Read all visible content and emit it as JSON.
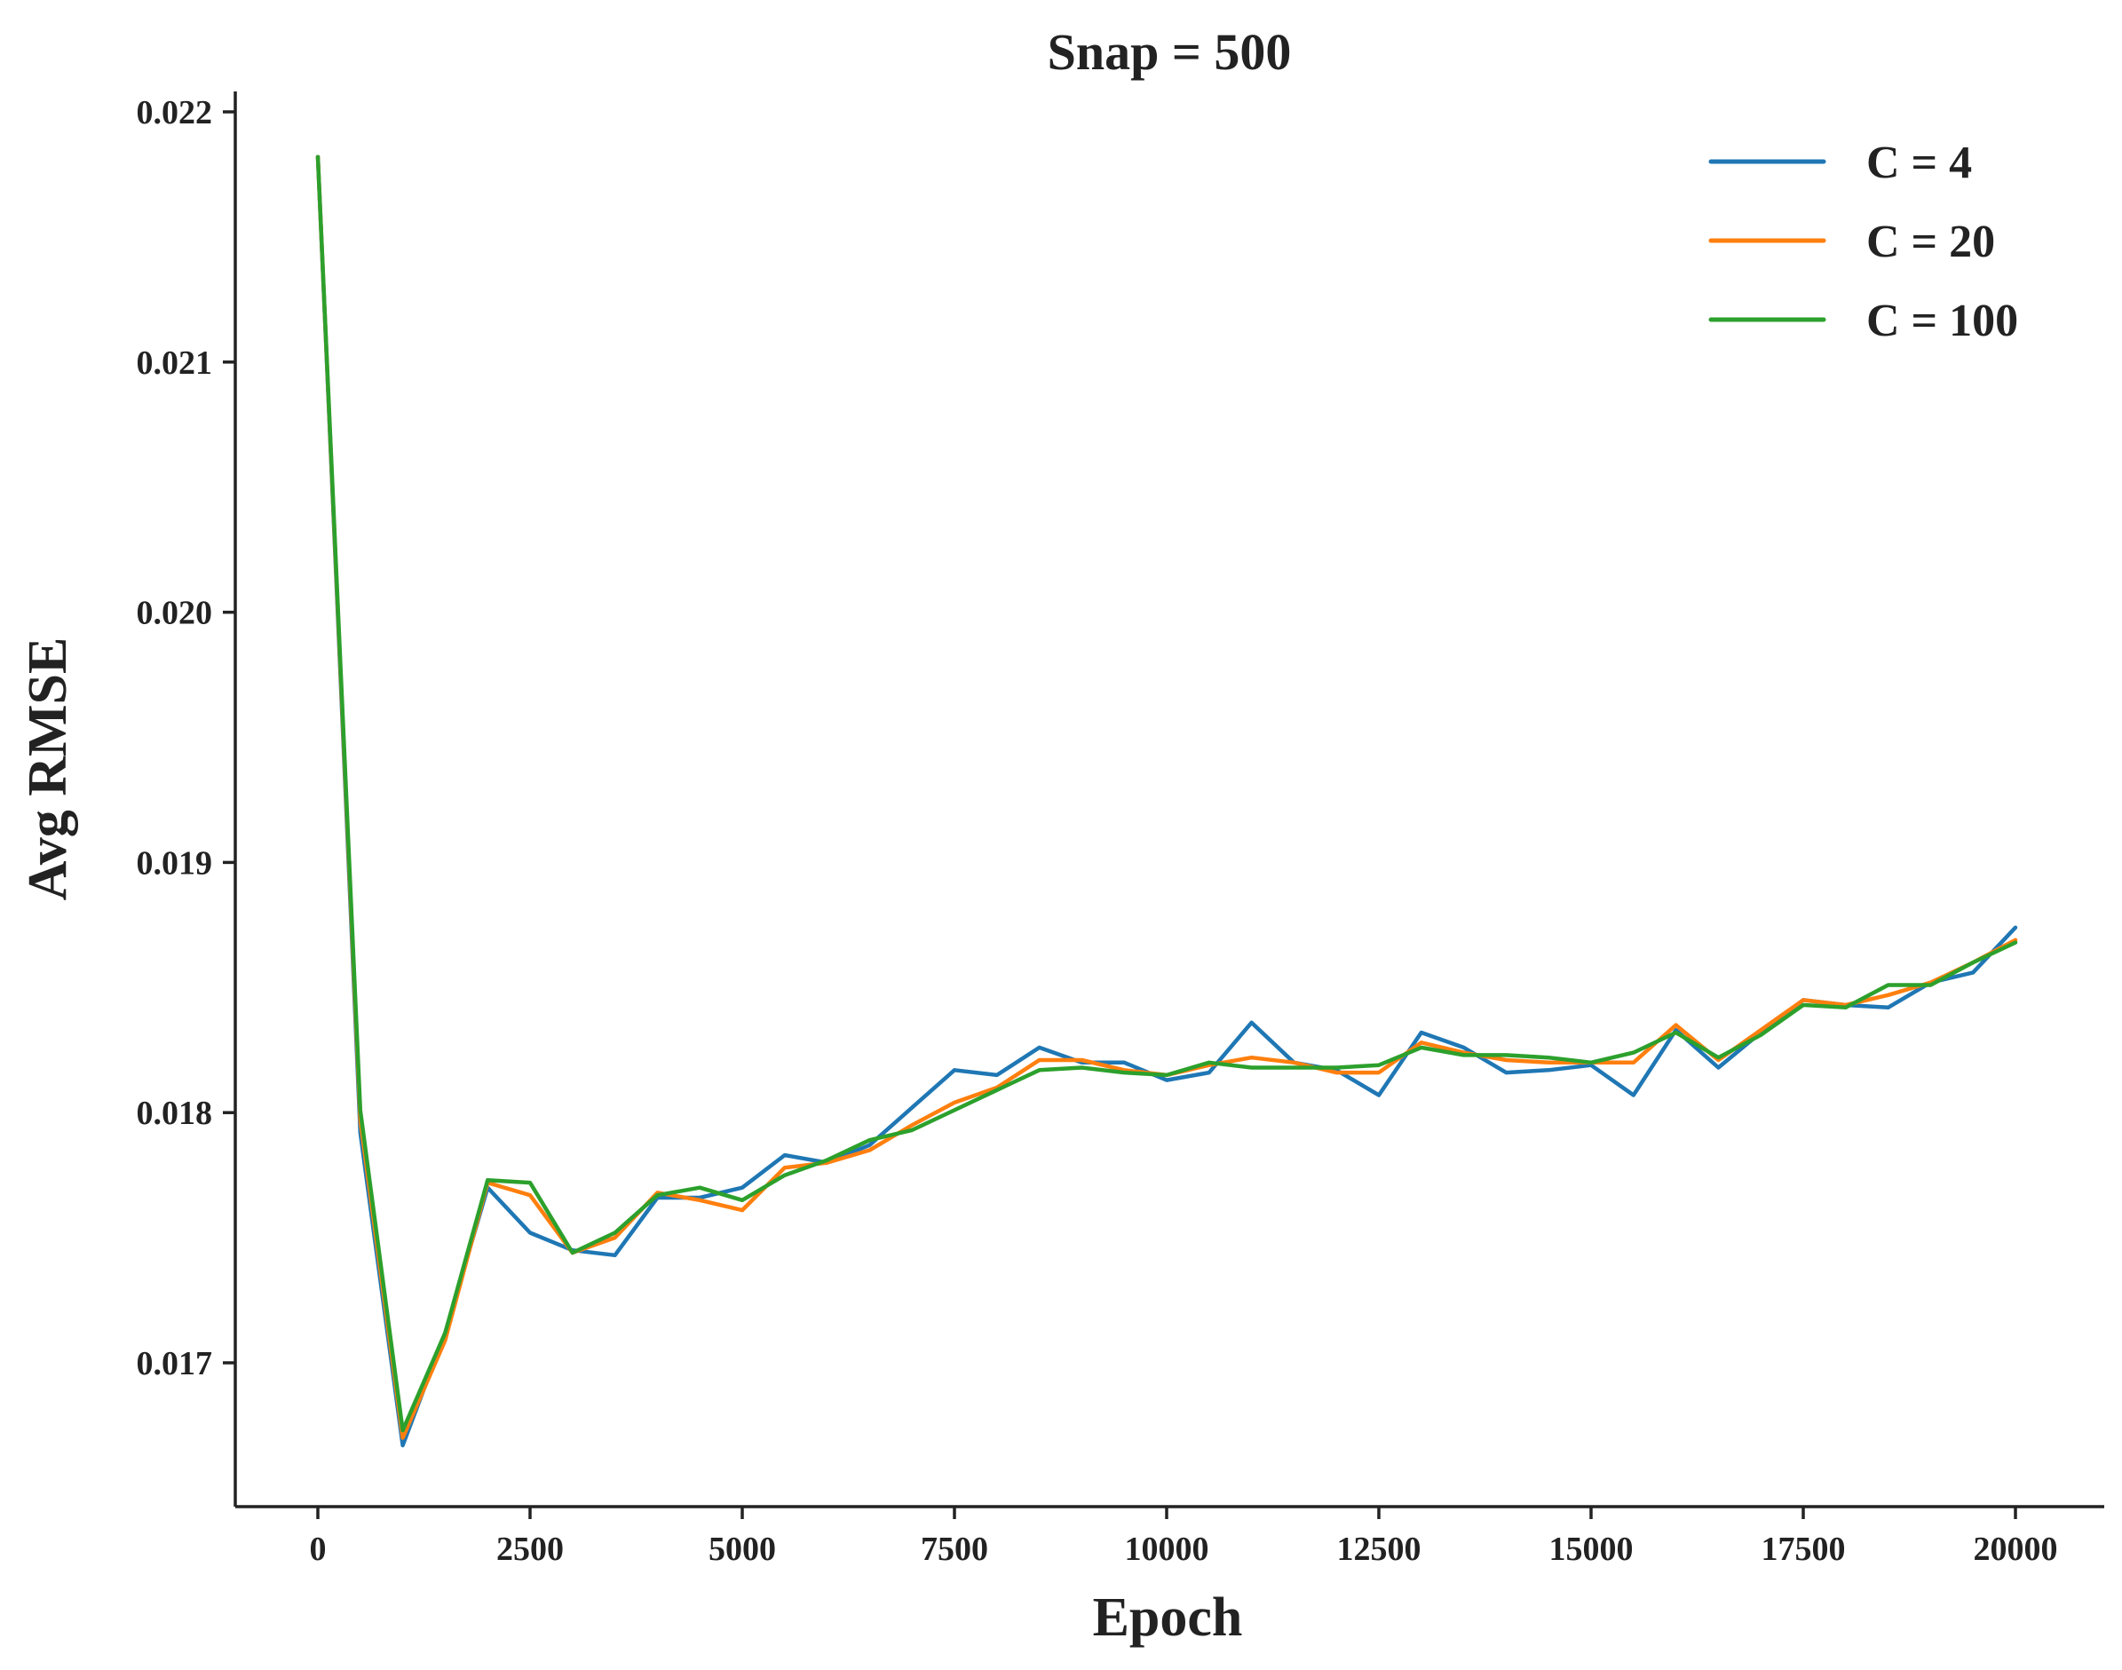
{
  "chart_data": {
    "type": "line",
    "title": "Snap = 500",
    "xlabel": "Epoch",
    "ylabel": "Avg RMSE",
    "xlim": [
      -1000,
      20000
    ],
    "ylim": [
      0.01642,
      0.02207
    ],
    "xticks": [
      0,
      2500,
      5000,
      7500,
      10000,
      12500,
      15000,
      17500,
      20000
    ],
    "xtick_labels": [
      "0",
      "2500",
      "5000",
      "7500",
      "10000",
      "12500",
      "15000",
      "17500",
      "20000"
    ],
    "yticks": [
      0.017,
      0.018,
      0.019,
      0.02,
      0.021,
      0.022
    ],
    "ytick_labels": [
      "0.017",
      "0.018",
      "0.019",
      "0.020",
      "0.021",
      "0.022"
    ],
    "grid": false,
    "legend_position": "top-right",
    "x": [
      0,
      500,
      1000,
      1500,
      2000,
      2500,
      3000,
      3500,
      4000,
      4500,
      5000,
      5500,
      6000,
      6500,
      7000,
      7500,
      8000,
      8500,
      9000,
      9500,
      10000,
      10500,
      11000,
      11500,
      12000,
      12500,
      13000,
      13500,
      14000,
      14500,
      15000,
      15500,
      16000,
      16500,
      17000,
      17500,
      18000,
      18500,
      19000,
      19500,
      20000
    ],
    "series": [
      {
        "name": "C = 4",
        "color": "#1f77b4",
        "values": [
          0.02182,
          0.01792,
          0.01667,
          0.01712,
          0.0177,
          0.01752,
          0.01745,
          0.01743,
          0.01766,
          0.01766,
          0.0177,
          0.01783,
          0.0178,
          0.01787,
          0.01802,
          0.01817,
          0.01815,
          0.01826,
          0.0182,
          0.0182,
          0.01813,
          0.01816,
          0.01836,
          0.0182,
          0.01817,
          0.01807,
          0.01832,
          0.01826,
          0.01816,
          0.01817,
          0.01819,
          0.01807,
          0.01833,
          0.01818,
          0.01832,
          0.01845,
          0.01843,
          0.01842,
          0.01852,
          0.01856,
          0.01874
        ]
      },
      {
        "name": "C = 20",
        "color": "#ff7f0e",
        "values": [
          0.02182,
          0.01797,
          0.0167,
          0.01709,
          0.01772,
          0.01767,
          0.01744,
          0.0175,
          0.01768,
          0.01765,
          0.01761,
          0.01778,
          0.0178,
          0.01785,
          0.01795,
          0.01804,
          0.0181,
          0.01821,
          0.01821,
          0.01817,
          0.01815,
          0.01819,
          0.01822,
          0.0182,
          0.01816,
          0.01816,
          0.01828,
          0.01824,
          0.01821,
          0.0182,
          0.0182,
          0.0182,
          0.01835,
          0.01821,
          0.01833,
          0.01845,
          0.01843,
          0.01847,
          0.01852,
          0.0186,
          0.01869
        ]
      },
      {
        "name": "C = 100",
        "color": "#2ca02c",
        "values": [
          0.02182,
          0.01801,
          0.01673,
          0.01712,
          0.01773,
          0.01772,
          0.01744,
          0.01752,
          0.01767,
          0.0177,
          0.01765,
          0.01775,
          0.01781,
          0.01789,
          0.01793,
          0.01801,
          0.01809,
          0.01817,
          0.01818,
          0.01816,
          0.01815,
          0.0182,
          0.01818,
          0.01818,
          0.01818,
          0.01819,
          0.01826,
          0.01823,
          0.01823,
          0.01822,
          0.0182,
          0.01824,
          0.01832,
          0.01822,
          0.01831,
          0.01843,
          0.01842,
          0.01851,
          0.01851,
          0.0186,
          0.01868
        ]
      }
    ]
  }
}
